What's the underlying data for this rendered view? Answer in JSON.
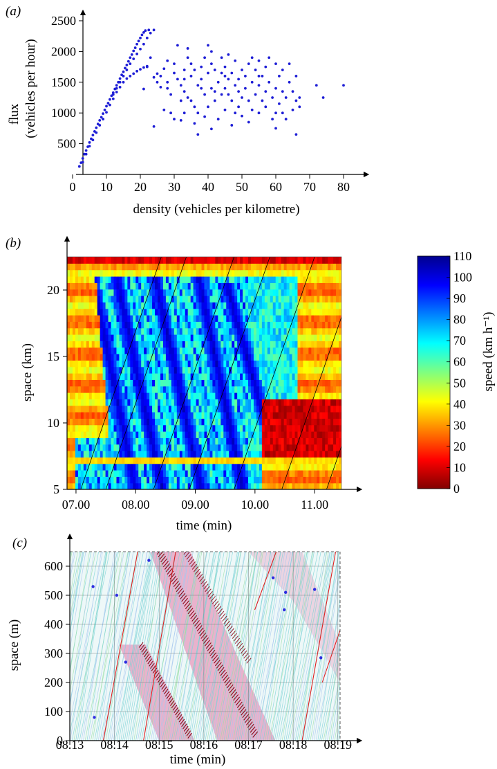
{
  "chart_data": [
    {
      "panel": "(a)",
      "type": "scatter",
      "xlabel": "density (vehicles per kilometre)",
      "ylabel": "flux (vehicles per hour)",
      "ylabel_lines": [
        "flux",
        "(vehicles per hour)"
      ],
      "xlim": [
        0,
        85
      ],
      "ylim": [
        0,
        2600
      ],
      "xticks": [
        "0",
        "10",
        "20",
        "30",
        "40",
        "50",
        "60",
        "70",
        "80"
      ],
      "yticks": [
        "500",
        "1000",
        "1500",
        "2000",
        "2500"
      ],
      "marker_color": "#1e1ed6",
      "points": [
        [
          2,
          130
        ],
        [
          2.5,
          190
        ],
        [
          3,
          260
        ],
        [
          3.5,
          330
        ],
        [
          4,
          390
        ],
        [
          4.5,
          450
        ],
        [
          5,
          520
        ],
        [
          5.5,
          580
        ],
        [
          6,
          640
        ],
        [
          6.5,
          700
        ],
        [
          7,
          760
        ],
        [
          7.5,
          820
        ],
        [
          8,
          880
        ],
        [
          8.5,
          930
        ],
        [
          9,
          990
        ],
        [
          9.5,
          1050
        ],
        [
          10,
          1110
        ],
        [
          10.5,
          1160
        ],
        [
          11,
          1220
        ],
        [
          11.5,
          1280
        ],
        [
          12,
          1330
        ],
        [
          12.5,
          1390
        ],
        [
          13,
          1450
        ],
        [
          13.5,
          1500
        ],
        [
          14,
          1560
        ],
        [
          14.5,
          1620
        ],
        [
          15,
          1670
        ],
        [
          15.5,
          1730
        ],
        [
          16,
          1780
        ],
        [
          16.5,
          1840
        ],
        [
          17,
          1900
        ],
        [
          17.5,
          1950
        ],
        [
          18,
          2010
        ],
        [
          18.5,
          2060
        ],
        [
          19,
          2120
        ],
        [
          19.5,
          2170
        ],
        [
          20,
          2220
        ],
        [
          20.5,
          2270
        ],
        [
          21,
          2310
        ],
        [
          21.5,
          2340
        ],
        [
          3,
          200
        ],
        [
          4,
          330
        ],
        [
          5,
          460
        ],
        [
          6,
          560
        ],
        [
          7,
          680
        ],
        [
          8,
          800
        ],
        [
          9,
          900
        ],
        [
          10,
          1010
        ],
        [
          11,
          1130
        ],
        [
          12,
          1230
        ],
        [
          13,
          1340
        ],
        [
          14,
          1420
        ],
        [
          15,
          1500
        ],
        [
          16,
          1560
        ],
        [
          17,
          1600
        ],
        [
          18,
          1640
        ],
        [
          19,
          1680
        ],
        [
          20,
          1710
        ],
        [
          21,
          1740
        ],
        [
          22,
          1760
        ],
        [
          12,
          1300
        ],
        [
          13,
          1400
        ],
        [
          14,
          1500
        ],
        [
          15,
          1600
        ],
        [
          16,
          1700
        ],
        [
          17,
          1800
        ],
        [
          18,
          1880
        ],
        [
          19,
          1960
        ],
        [
          20,
          2040
        ],
        [
          21,
          2120
        ],
        [
          22,
          2220
        ],
        [
          22.5,
          2350
        ],
        [
          23,
          2300
        ],
        [
          24,
          2350
        ],
        [
          23,
          1900
        ],
        [
          22,
          1750
        ],
        [
          21,
          1390
        ],
        [
          24,
          1580
        ],
        [
          25,
          1500
        ],
        [
          26,
          1420
        ],
        [
          24,
          780
        ],
        [
          25,
          1640
        ],
        [
          26,
          1600
        ],
        [
          27,
          1720
        ],
        [
          28,
          1850
        ],
        [
          28,
          1500
        ],
        [
          28,
          1400
        ],
        [
          29,
          1300
        ],
        [
          29,
          1000
        ],
        [
          30,
          900
        ],
        [
          30,
          1650
        ],
        [
          30,
          1800
        ],
        [
          31,
          2100
        ],
        [
          31,
          1550
        ],
        [
          32,
          1450
        ],
        [
          32,
          1200
        ],
        [
          32,
          880
        ],
        [
          33,
          1000
        ],
        [
          33,
          1350
        ],
        [
          33,
          1700
        ],
        [
          34,
          1900
        ],
        [
          34,
          2050
        ],
        [
          34,
          1250
        ],
        [
          35,
          1600
        ],
        [
          35,
          1800
        ],
        [
          36,
          1700
        ],
        [
          36,
          1100
        ],
        [
          37,
          1000
        ],
        [
          37,
          1450
        ],
        [
          37,
          650
        ],
        [
          38,
          1550
        ],
        [
          38,
          1750
        ],
        [
          39,
          1900
        ],
        [
          39,
          1300
        ],
        [
          40,
          2100
        ],
        [
          40,
          1650
        ],
        [
          40,
          1100
        ],
        [
          41,
          2000
        ],
        [
          41,
          1800
        ],
        [
          41,
          1400
        ],
        [
          42,
          1700
        ],
        [
          42,
          1200
        ],
        [
          43,
          900
        ],
        [
          43,
          1500
        ],
        [
          44,
          1900
        ],
        [
          44,
          1650
        ],
        [
          44,
          1300
        ],
        [
          45,
          1050
        ],
        [
          45,
          1400
        ],
        [
          45,
          1750
        ],
        [
          46,
          1550
        ],
        [
          46,
          1300
        ],
        [
          46,
          1950
        ],
        [
          47,
          1200
        ],
        [
          47,
          800
        ],
        [
          47,
          1650
        ],
        [
          48,
          1450
        ],
        [
          48,
          1850
        ],
        [
          49,
          1100
        ],
        [
          49,
          1550
        ],
        [
          50,
          1700
        ],
        [
          50,
          1250
        ],
        [
          50,
          950
        ],
        [
          51,
          1600
        ],
        [
          51,
          1400
        ],
        [
          52,
          1800
        ],
        [
          52,
          1200
        ],
        [
          52,
          850
        ],
        [
          53,
          1900
        ],
        [
          53,
          1500
        ],
        [
          54,
          1300
        ],
        [
          54,
          1700
        ],
        [
          55,
          1000
        ],
        [
          55,
          1450
        ],
        [
          55,
          1850
        ],
        [
          56,
          1200
        ],
        [
          56,
          1600
        ],
        [
          57,
          1100
        ],
        [
          57,
          1350
        ],
        [
          58,
          1900
        ],
        [
          58,
          1500
        ],
        [
          59,
          1250
        ],
        [
          59,
          900
        ],
        [
          60,
          1800
        ],
        [
          60,
          1400
        ],
        [
          60,
          1000
        ],
        [
          60,
          750
        ],
        [
          61,
          1600
        ],
        [
          61,
          1150
        ],
        [
          62,
          1350
        ],
        [
          62,
          1700
        ],
        [
          63,
          900
        ],
        [
          63,
          1250
        ],
        [
          64,
          1800
        ],
        [
          64,
          1500
        ],
        [
          65,
          1350
        ],
        [
          65,
          1050
        ],
        [
          66,
          1200
        ],
        [
          66,
          1600
        ],
        [
          66,
          650
        ],
        [
          67,
          1100
        ],
        [
          67,
          1250
        ],
        [
          72,
          1450
        ],
        [
          74,
          1250
        ],
        [
          80,
          1450
        ],
        [
          41,
          740
        ],
        [
          36,
          830
        ],
        [
          39,
          940
        ],
        [
          27,
          1050
        ],
        [
          48,
          1000
        ],
        [
          53,
          1050
        ],
        [
          62,
          1000
        ],
        [
          42,
          1350
        ],
        [
          45,
          1600
        ],
        [
          33,
          1550
        ],
        [
          38,
          1400
        ],
        [
          35,
          1200
        ],
        [
          57,
          1750
        ],
        [
          55,
          1600
        ],
        [
          49,
          1350
        ]
      ]
    },
    {
      "panel": "(b)",
      "type": "heatmap",
      "xlabel": "time (min)",
      "ylabel": "space (km)",
      "xlim": [
        6.85,
        11.45
      ],
      "ylim": [
        5,
        22.5
      ],
      "xticks": [
        "07.00",
        "08.00",
        "09.00",
        "10.00",
        "11.00"
      ],
      "yticks": [
        "5",
        "10",
        "15",
        "20"
      ],
      "colorbar": {
        "label": "speed (km h⁻¹)",
        "min": 0,
        "max": 110,
        "ticks": [
          "0",
          "10",
          "20",
          "30",
          "40",
          "50",
          "60",
          "70",
          "80",
          "90",
          "100",
          "110"
        ]
      },
      "colormap": "jet",
      "congestion_waves": [
        {
          "t0": 7.25,
          "s0": 21.5,
          "t1": 8.0,
          "s1": 5.0
        },
        {
          "t0": 7.7,
          "s0": 20.5,
          "t1": 8.45,
          "s1": 5.0
        },
        {
          "t0": 8.35,
          "s0": 20.5,
          "t1": 9.1,
          "s1": 5.0
        },
        {
          "t0": 9.05,
          "s0": 21.0,
          "t1": 9.8,
          "s1": 5.0
        },
        {
          "t0": 9.55,
          "s0": 20.0,
          "t1": 10.15,
          "s1": 10.5
        }
      ]
    },
    {
      "panel": "(c)",
      "type": "scatter",
      "xlabel": "time (min)",
      "ylabel": "space (m)",
      "xlim": [
        8.13,
        8.1905
      ],
      "ylim": [
        0,
        650
      ],
      "xticks": [
        "08.13",
        "08.14",
        "08.15",
        "08.16",
        "08.17",
        "08.18",
        "08.19"
      ],
      "yticks": [
        "0",
        "100",
        "200",
        "300",
        "400",
        "500",
        "600"
      ],
      "colors": {
        "free_flow": "#7ad2d6",
        "congested": "#e0307a",
        "jam": "#8a0a1a",
        "grid": "#5a6a6a"
      }
    }
  ]
}
